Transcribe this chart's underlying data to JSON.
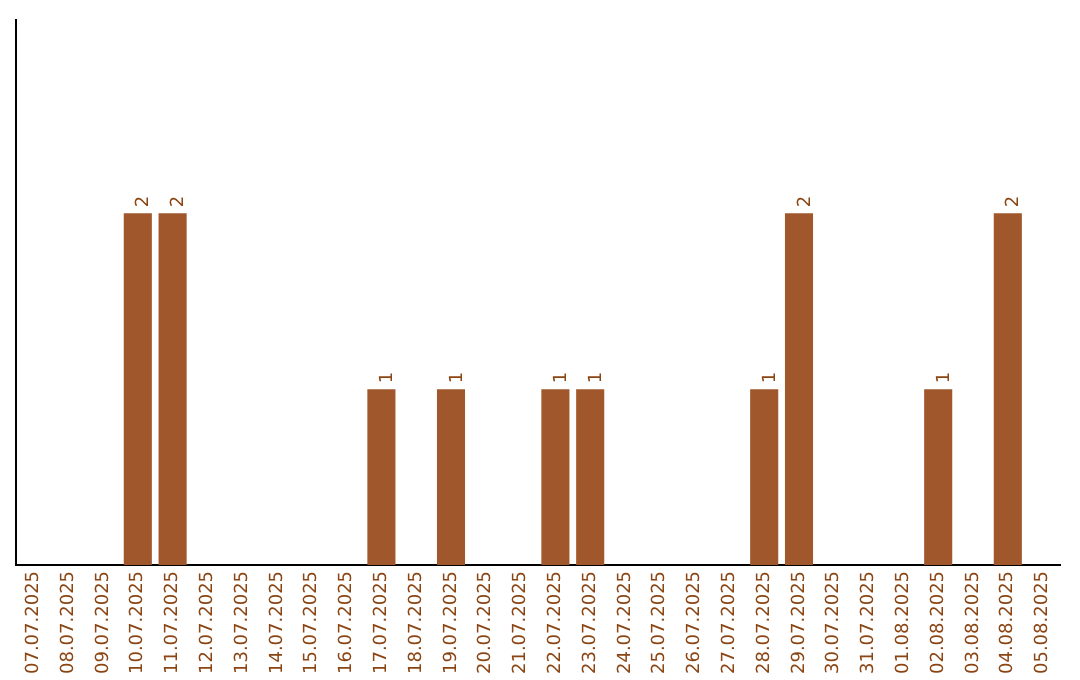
{
  "chart_data": {
    "type": "bar",
    "categories": [
      "07.07.2025",
      "08.07.2025",
      "09.07.2025",
      "10.07.2025",
      "11.07.2025",
      "12.07.2025",
      "13.07.2025",
      "14.07.2025",
      "15.07.2025",
      "16.07.2025",
      "17.07.2025",
      "18.07.2025",
      "19.07.2025",
      "20.07.2025",
      "21.07.2025",
      "22.07.2025",
      "23.07.2025",
      "24.07.2025",
      "25.07.2025",
      "26.07.2025",
      "27.07.2025",
      "28.07.2025",
      "29.07.2025",
      "30.07.2025",
      "31.07.2025",
      "01.08.2025",
      "02.08.2025",
      "03.08.2025",
      "04.08.2025",
      "05.08.2025"
    ],
    "values": [
      0,
      0,
      0,
      2,
      2,
      0,
      0,
      0,
      0,
      0,
      1,
      0,
      1,
      0,
      0,
      1,
      1,
      0,
      0,
      0,
      0,
      1,
      2,
      0,
      0,
      0,
      1,
      0,
      2,
      0
    ],
    "value_labels": [
      null,
      null,
      null,
      "2",
      "2",
      null,
      null,
      null,
      null,
      null,
      "1",
      null,
      "1",
      null,
      null,
      "1",
      "1",
      null,
      null,
      null,
      null,
      "1",
      "2",
      null,
      null,
      null,
      "1",
      null,
      "2",
      null
    ],
    "color": "#a0572b",
    "grid": false,
    "legend": false
  }
}
